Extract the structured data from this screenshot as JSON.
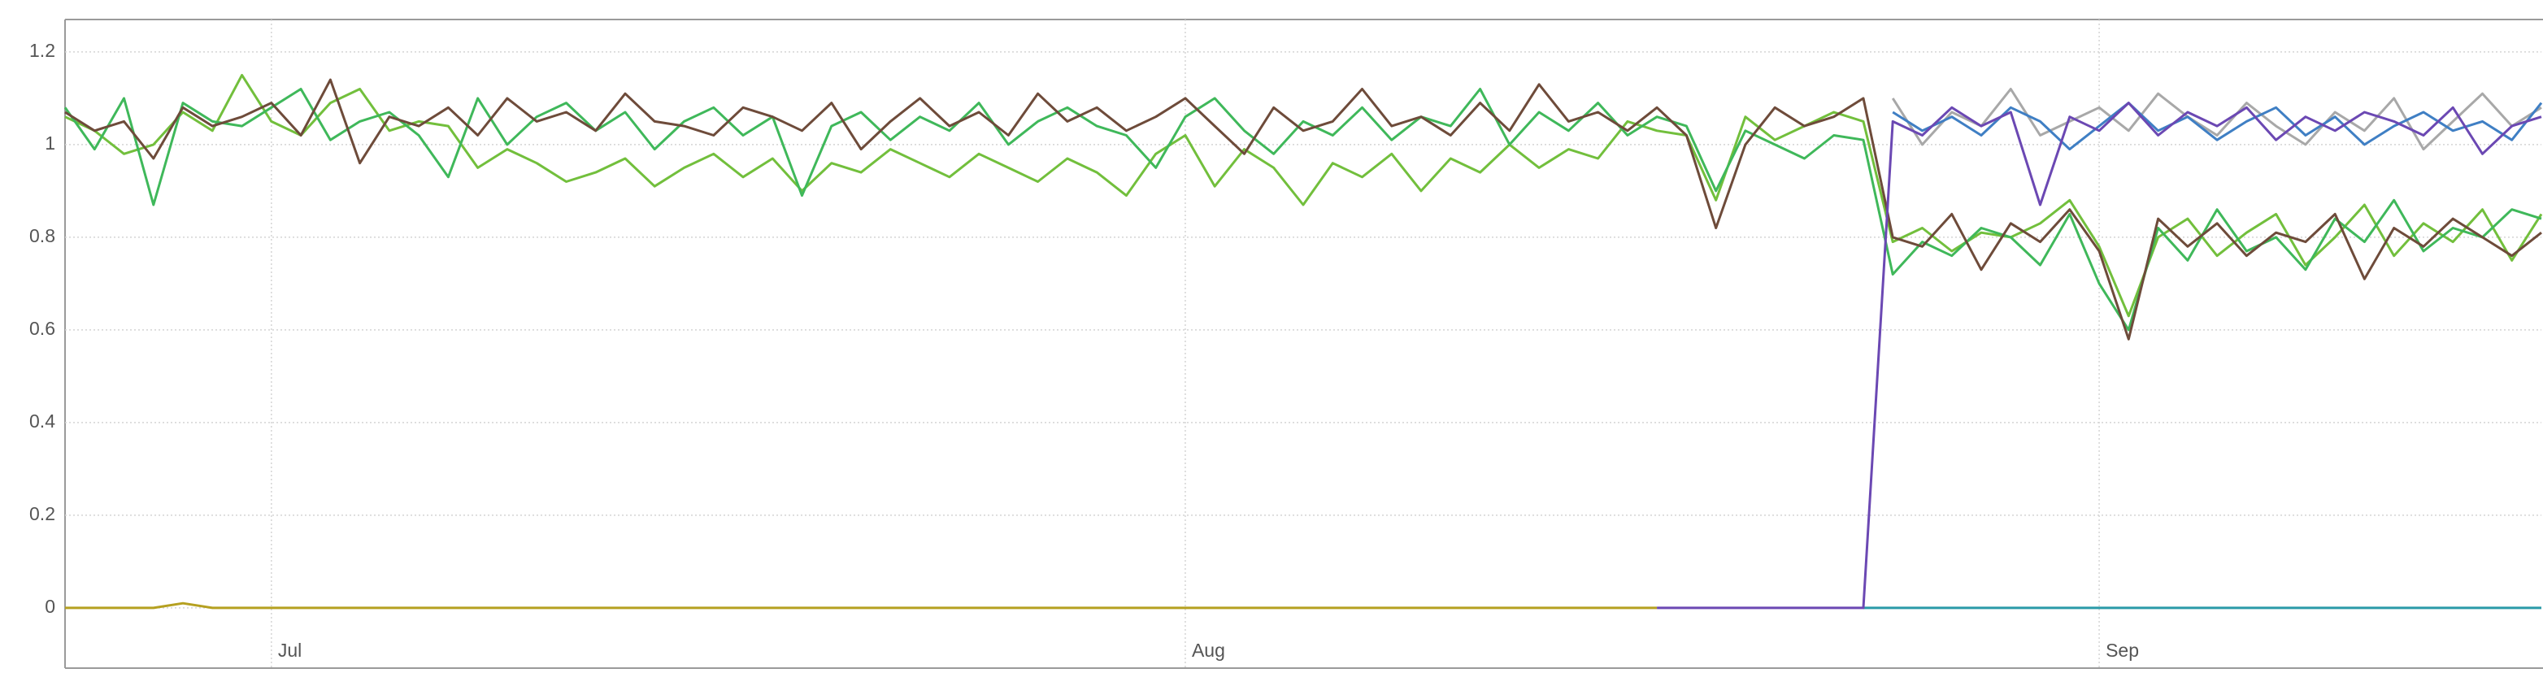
{
  "chart_data": {
    "type": "line",
    "x": [
      -7,
      -6,
      -5,
      -4,
      -3,
      -2,
      -1,
      0,
      1,
      2,
      3,
      4,
      5,
      6,
      7,
      8,
      9,
      10,
      11,
      12,
      13,
      14,
      15,
      16,
      17,
      18,
      19,
      20,
      21,
      22,
      23,
      24,
      25,
      26,
      27,
      28,
      29,
      30,
      31,
      32,
      33,
      34,
      35,
      36,
      37,
      38,
      39,
      40,
      41,
      42,
      43,
      44,
      45,
      46,
      47,
      48,
      49,
      50,
      51,
      52,
      53,
      54,
      55,
      56,
      57,
      58,
      59,
      60,
      61,
      62,
      63,
      64,
      65,
      66,
      67,
      68,
      69,
      70,
      71,
      72,
      73,
      74,
      75,
      76,
      77
    ],
    "xlim": [
      -7,
      77
    ],
    "xticks": [
      {
        "value": 0,
        "label": "Jul"
      },
      {
        "value": 31,
        "label": "Aug"
      },
      {
        "value": 62,
        "label": "Sep"
      }
    ],
    "ylim": [
      -0.13,
      1.27
    ],
    "yticks": [
      0,
      0.2,
      0.4,
      0.6,
      0.8,
      1,
      1.2
    ],
    "grid": true,
    "series": [
      {
        "color": "#b5a020",
        "values": [
          0,
          0,
          0,
          0,
          0.01,
          0,
          0,
          0,
          0,
          0,
          0,
          0,
          0,
          0,
          0,
          0,
          0,
          0,
          0,
          0,
          0,
          0,
          0,
          0,
          0,
          0,
          0,
          0,
          0,
          0,
          0,
          0,
          0,
          0,
          0,
          0,
          0,
          0,
          0,
          0,
          0,
          0,
          0,
          0,
          0,
          0,
          0,
          0,
          0,
          0,
          0,
          0,
          0,
          0,
          0,
          null,
          null,
          null,
          null,
          null,
          null,
          null,
          null,
          null,
          null,
          null,
          null,
          null,
          null,
          null,
          null,
          null,
          null,
          null,
          null,
          null,
          null,
          null,
          null,
          null,
          null,
          null,
          null,
          null,
          null
        ]
      },
      {
        "color": "#2a9aa8",
        "values": [
          null,
          null,
          null,
          null,
          null,
          null,
          null,
          null,
          null,
          null,
          null,
          null,
          null,
          null,
          null,
          null,
          null,
          null,
          null,
          null,
          null,
          null,
          null,
          null,
          null,
          null,
          null,
          null,
          null,
          null,
          null,
          null,
          null,
          null,
          null,
          null,
          null,
          null,
          null,
          null,
          null,
          null,
          null,
          null,
          null,
          null,
          null,
          null,
          null,
          null,
          null,
          null,
          null,
          null,
          null,
          null,
          null,
          null,
          null,
          null,
          null,
          0,
          0,
          0,
          0,
          0,
          0,
          0,
          0,
          0,
          0,
          0,
          0,
          0,
          0,
          0,
          0,
          0,
          0,
          0,
          0,
          0,
          0,
          0,
          0
        ]
      },
      {
        "color": "#72bf3c",
        "values": [
          1.06,
          1.03,
          0.98,
          1.0,
          1.07,
          1.03,
          1.15,
          1.05,
          1.02,
          1.09,
          1.12,
          1.03,
          1.05,
          1.04,
          0.95,
          0.99,
          0.96,
          0.92,
          0.94,
          0.97,
          0.91,
          0.95,
          0.98,
          0.93,
          0.97,
          0.9,
          0.96,
          0.94,
          0.99,
          0.96,
          0.93,
          0.98,
          0.95,
          0.92,
          0.97,
          0.94,
          0.89,
          0.98,
          1.02,
          0.91,
          0.99,
          0.95,
          0.87,
          0.96,
          0.93,
          0.98,
          0.9,
          0.97,
          0.94,
          1.0,
          0.95,
          0.99,
          0.97,
          1.05,
          1.03,
          1.02,
          0.88,
          1.06,
          1.01,
          1.04,
          1.07,
          1.05,
          0.79,
          0.82,
          0.77,
          0.81,
          0.8,
          0.83,
          0.88,
          0.78,
          0.63,
          0.8,
          0.84,
          0.76,
          0.81,
          0.85,
          0.74,
          0.8,
          0.87,
          0.76,
          0.83,
          0.79,
          0.86,
          0.75,
          0.85
        ]
      },
      {
        "color": "#3fb85a",
        "values": [
          1.08,
          0.99,
          1.1,
          0.87,
          1.09,
          1.05,
          1.04,
          1.08,
          1.12,
          1.01,
          1.05,
          1.07,
          1.02,
          0.93,
          1.1,
          1.0,
          1.06,
          1.09,
          1.03,
          1.07,
          0.99,
          1.05,
          1.08,
          1.02,
          1.06,
          0.89,
          1.04,
          1.07,
          1.01,
          1.06,
          1.03,
          1.09,
          1.0,
          1.05,
          1.08,
          1.04,
          1.02,
          0.95,
          1.06,
          1.1,
          1.03,
          0.98,
          1.05,
          1.02,
          1.08,
          1.01,
          1.06,
          1.04,
          1.12,
          1.0,
          1.07,
          1.03,
          1.09,
          1.02,
          1.06,
          1.04,
          0.9,
          1.03,
          1.0,
          0.97,
          1.02,
          1.01,
          0.72,
          0.79,
          0.76,
          0.82,
          0.8,
          0.74,
          0.85,
          0.7,
          0.6,
          0.82,
          0.75,
          0.86,
          0.77,
          0.8,
          0.73,
          0.84,
          0.79,
          0.88,
          0.77,
          0.82,
          0.8,
          0.86,
          0.84
        ]
      },
      {
        "color": "#6e4b3a",
        "values": [
          1.07,
          1.03,
          1.05,
          0.97,
          1.08,
          1.04,
          1.06,
          1.09,
          1.02,
          1.14,
          0.96,
          1.06,
          1.04,
          1.08,
          1.02,
          1.1,
          1.05,
          1.07,
          1.03,
          1.11,
          1.05,
          1.04,
          1.02,
          1.08,
          1.06,
          1.03,
          1.09,
          0.99,
          1.05,
          1.1,
          1.04,
          1.07,
          1.02,
          1.11,
          1.05,
          1.08,
          1.03,
          1.06,
          1.1,
          1.04,
          0.98,
          1.08,
          1.03,
          1.05,
          1.12,
          1.04,
          1.06,
          1.02,
          1.09,
          1.03,
          1.13,
          1.05,
          1.07,
          1.03,
          1.08,
          1.02,
          0.82,
          1.0,
          1.08,
          1.04,
          1.06,
          1.1,
          0.8,
          0.78,
          0.85,
          0.73,
          0.83,
          0.79,
          0.86,
          0.77,
          0.58,
          0.84,
          0.78,
          0.83,
          0.76,
          0.81,
          0.79,
          0.85,
          0.71,
          0.82,
          0.78,
          0.84,
          0.8,
          0.76,
          0.81
        ]
      },
      {
        "color": "#a8a8a8",
        "values": [
          null,
          null,
          null,
          null,
          null,
          null,
          null,
          null,
          null,
          null,
          null,
          null,
          null,
          null,
          null,
          null,
          null,
          null,
          null,
          null,
          null,
          null,
          null,
          null,
          null,
          null,
          null,
          null,
          null,
          null,
          null,
          null,
          null,
          null,
          null,
          null,
          null,
          null,
          null,
          null,
          null,
          null,
          null,
          null,
          null,
          null,
          null,
          null,
          null,
          null,
          null,
          null,
          null,
          null,
          null,
          null,
          null,
          null,
          null,
          null,
          null,
          null,
          1.1,
          1.0,
          1.07,
          1.04,
          1.12,
          1.02,
          1.05,
          1.08,
          1.03,
          1.11,
          1.06,
          1.02,
          1.09,
          1.04,
          1.0,
          1.07,
          1.03,
          1.1,
          0.99,
          1.05,
          1.11,
          1.04,
          1.08
        ]
      },
      {
        "color": "#3f7fc4",
        "values": [
          null,
          null,
          null,
          null,
          null,
          null,
          null,
          null,
          null,
          null,
          null,
          null,
          null,
          null,
          null,
          null,
          null,
          null,
          null,
          null,
          null,
          null,
          null,
          null,
          null,
          null,
          null,
          null,
          null,
          null,
          null,
          null,
          null,
          null,
          null,
          null,
          null,
          null,
          null,
          null,
          null,
          null,
          null,
          null,
          null,
          null,
          null,
          null,
          null,
          null,
          null,
          null,
          null,
          null,
          null,
          null,
          null,
          null,
          null,
          null,
          null,
          null,
          1.07,
          1.03,
          1.06,
          1.02,
          1.08,
          1.05,
          0.99,
          1.04,
          1.09,
          1.03,
          1.06,
          1.01,
          1.05,
          1.08,
          1.02,
          1.06,
          1.0,
          1.04,
          1.07,
          1.03,
          1.05,
          1.01,
          1.09
        ]
      },
      {
        "color": "#6b48b3",
        "values": [
          null,
          null,
          null,
          null,
          null,
          null,
          null,
          null,
          null,
          null,
          null,
          null,
          null,
          null,
          null,
          null,
          null,
          null,
          null,
          null,
          null,
          null,
          null,
          null,
          null,
          null,
          null,
          null,
          null,
          null,
          null,
          null,
          null,
          null,
          null,
          null,
          null,
          null,
          null,
          null,
          null,
          null,
          null,
          null,
          null,
          null,
          null,
          null,
          null,
          null,
          null,
          null,
          null,
          null,
          0,
          0,
          0,
          0,
          0,
          0,
          0,
          0,
          1.05,
          1.02,
          1.08,
          1.04,
          1.07,
          0.87,
          1.06,
          1.03,
          1.09,
          1.02,
          1.07,
          1.04,
          1.08,
          1.01,
          1.06,
          1.03,
          1.07,
          1.05,
          1.02,
          1.08,
          0.98,
          1.04,
          1.06
        ]
      }
    ]
  }
}
